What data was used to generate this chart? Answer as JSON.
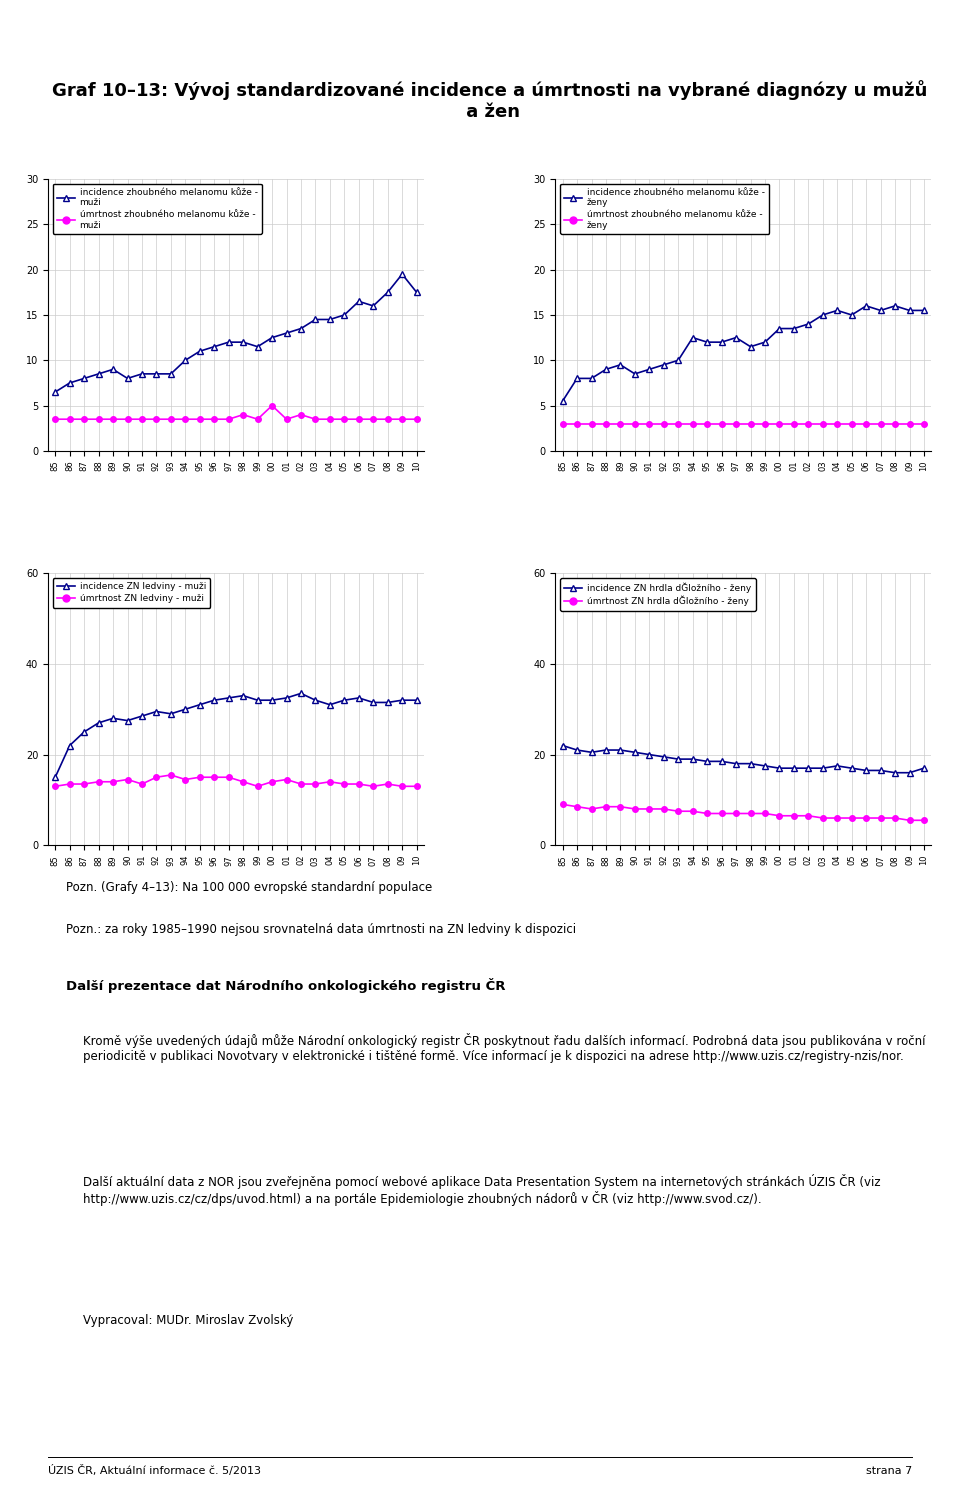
{
  "title": "Graf 10–13: Vývoj standardizované incidence a úmrtnosti na vybrané diagnózy u mužů\n a žen",
  "years": [
    1985,
    1986,
    1987,
    1988,
    1989,
    1990,
    1991,
    1992,
    1993,
    1994,
    1995,
    1996,
    1997,
    1998,
    1999,
    2000,
    2001,
    2002,
    2003,
    2004,
    2005,
    2006,
    2007,
    2008,
    2009,
    2010
  ],
  "graph1": {
    "title": "",
    "legend1": "incidence zhoubného melanomu kůže -\nmuži",
    "legend2": "úmrtnost zhoubného melanomu kůže -\nmuži",
    "ylim": [
      0,
      30
    ],
    "yticks": [
      0,
      5,
      10,
      15,
      20,
      25,
      30
    ],
    "line1": [
      6.5,
      7.5,
      8.0,
      8.5,
      9.0,
      8.0,
      8.5,
      8.5,
      8.5,
      10.0,
      11.0,
      11.5,
      12.0,
      12.0,
      11.5,
      12.5,
      13.0,
      13.5,
      14.5,
      14.5,
      15.0,
      16.5,
      16.0,
      17.5,
      19.5,
      17.5
    ],
    "line2": [
      3.5,
      3.5,
      3.5,
      3.5,
      3.5,
      3.5,
      3.5,
      3.5,
      3.5,
      3.5,
      3.5,
      3.5,
      3.5,
      4.0,
      3.5,
      5.0,
      3.5,
      4.0,
      3.5,
      3.5,
      3.5,
      3.5,
      3.5,
      3.5,
      3.5,
      3.5
    ]
  },
  "graph2": {
    "title": "",
    "legend1": "incidence zhoubného melanomu kůže -\nženy",
    "legend2": "úmrtnost zhoubného melanomu kůže -\nženy",
    "ylim": [
      0,
      30
    ],
    "yticks": [
      0,
      5,
      10,
      15,
      20,
      25,
      30
    ],
    "line1": [
      5.5,
      8.0,
      8.0,
      9.0,
      9.5,
      8.5,
      9.0,
      9.5,
      10.0,
      12.5,
      12.0,
      12.0,
      12.5,
      11.5,
      12.0,
      13.5,
      13.5,
      14.0,
      15.0,
      15.5,
      15.0,
      16.0,
      15.5,
      16.0,
      15.5,
      15.5
    ],
    "line2": [
      3.0,
      3.0,
      3.0,
      3.0,
      3.0,
      3.0,
      3.0,
      3.0,
      3.0,
      3.0,
      3.0,
      3.0,
      3.0,
      3.0,
      3.0,
      3.0,
      3.0,
      3.0,
      3.0,
      3.0,
      3.0,
      3.0,
      3.0,
      3.0,
      3.0,
      3.0
    ]
  },
  "graph3": {
    "title": "",
    "legend1": "incidence ZN ledviny - muži",
    "legend2": "úmrtnost ZN ledviny - muži",
    "ylim": [
      0,
      60
    ],
    "yticks": [
      0,
      20,
      40,
      60
    ],
    "line1": [
      15.0,
      22.0,
      25.0,
      27.0,
      28.0,
      27.5,
      28.5,
      29.5,
      29.0,
      30.0,
      31.0,
      32.0,
      32.5,
      33.0,
      32.0,
      32.0,
      32.5,
      33.5,
      32.0,
      31.0,
      32.0,
      32.5,
      31.5,
      31.5,
      32.0,
      32.0
    ],
    "line2": [
      13.0,
      13.5,
      13.5,
      14.0,
      14.0,
      14.5,
      13.5,
      15.0,
      15.5,
      14.5,
      15.0,
      15.0,
      15.0,
      14.0,
      13.0,
      14.0,
      14.5,
      13.5,
      13.5,
      14.0,
      13.5,
      13.5,
      13.0,
      13.5,
      13.0,
      13.0
    ]
  },
  "graph4": {
    "title": "",
    "legend1": "incidence ZN hrdla dĞložního - ženy",
    "legend2": "úmrtnost ZN hrdla dĞložního - ženy",
    "ylim": [
      0,
      60
    ],
    "yticks": [
      0,
      20,
      40,
      60
    ],
    "line1": [
      22.0,
      21.0,
      20.5,
      21.0,
      21.0,
      20.5,
      20.0,
      19.5,
      19.0,
      19.0,
      18.5,
      18.5,
      18.0,
      18.0,
      17.5,
      17.0,
      17.0,
      17.0,
      17.0,
      17.5,
      17.0,
      16.5,
      16.5,
      16.0,
      16.0,
      17.0
    ],
    "line2": [
      9.0,
      8.5,
      8.0,
      8.5,
      8.5,
      8.0,
      8.0,
      8.0,
      7.5,
      7.5,
      7.0,
      7.0,
      7.0,
      7.0,
      7.0,
      6.5,
      6.5,
      6.5,
      6.0,
      6.0,
      6.0,
      6.0,
      6.0,
      6.0,
      5.5,
      5.5
    ]
  },
  "note1": "Pozn. (Grafy 4–13): Na 100 000 evropské standardní populace",
  "note2": "Pozn.: za roky 1985–1990 nejsou srovnatelná data úmrtnosti na ZN ledviny k dispozici",
  "section_title": "Další prezentace dat Národního onkologického registru ČR",
  "body_text": "Kromě výše uvedených údajů může Národní onkologický registr ČR poskytnout řadu dalších informací. Podrobná data jsou publikována v roční periodicitě v publikaci Novotvary v elektronické i tištěné formě. Více informací je k dispozici na adrese http://www.uzis.cz/registry-nzis/nor.",
  "body_text2": "Další aktuální data z NOR jsou zveřejněna pomocí webové aplikace Data Presentation System na internetových stránkách Úzis ČR (viz http://www.uzis.cz/cz/dps/uvod.html) a na portále Epidemiologie zhoubných nádorů v ČR (viz http://www.svod.cz/).",
  "footer_text": "Vypracoval: MUDr. Miroslav Zvolský",
  "footer_line": "Úzis ČR, Aktuální informace č. 5/2013                                                                                                                  strana 7",
  "line1_color": "#00008B",
  "line2_color": "#FF00FF",
  "line1_marker": "^",
  "line2_marker": "o",
  "bg_color": "#FFFFFF",
  "grid_color": "#CCCCCC"
}
